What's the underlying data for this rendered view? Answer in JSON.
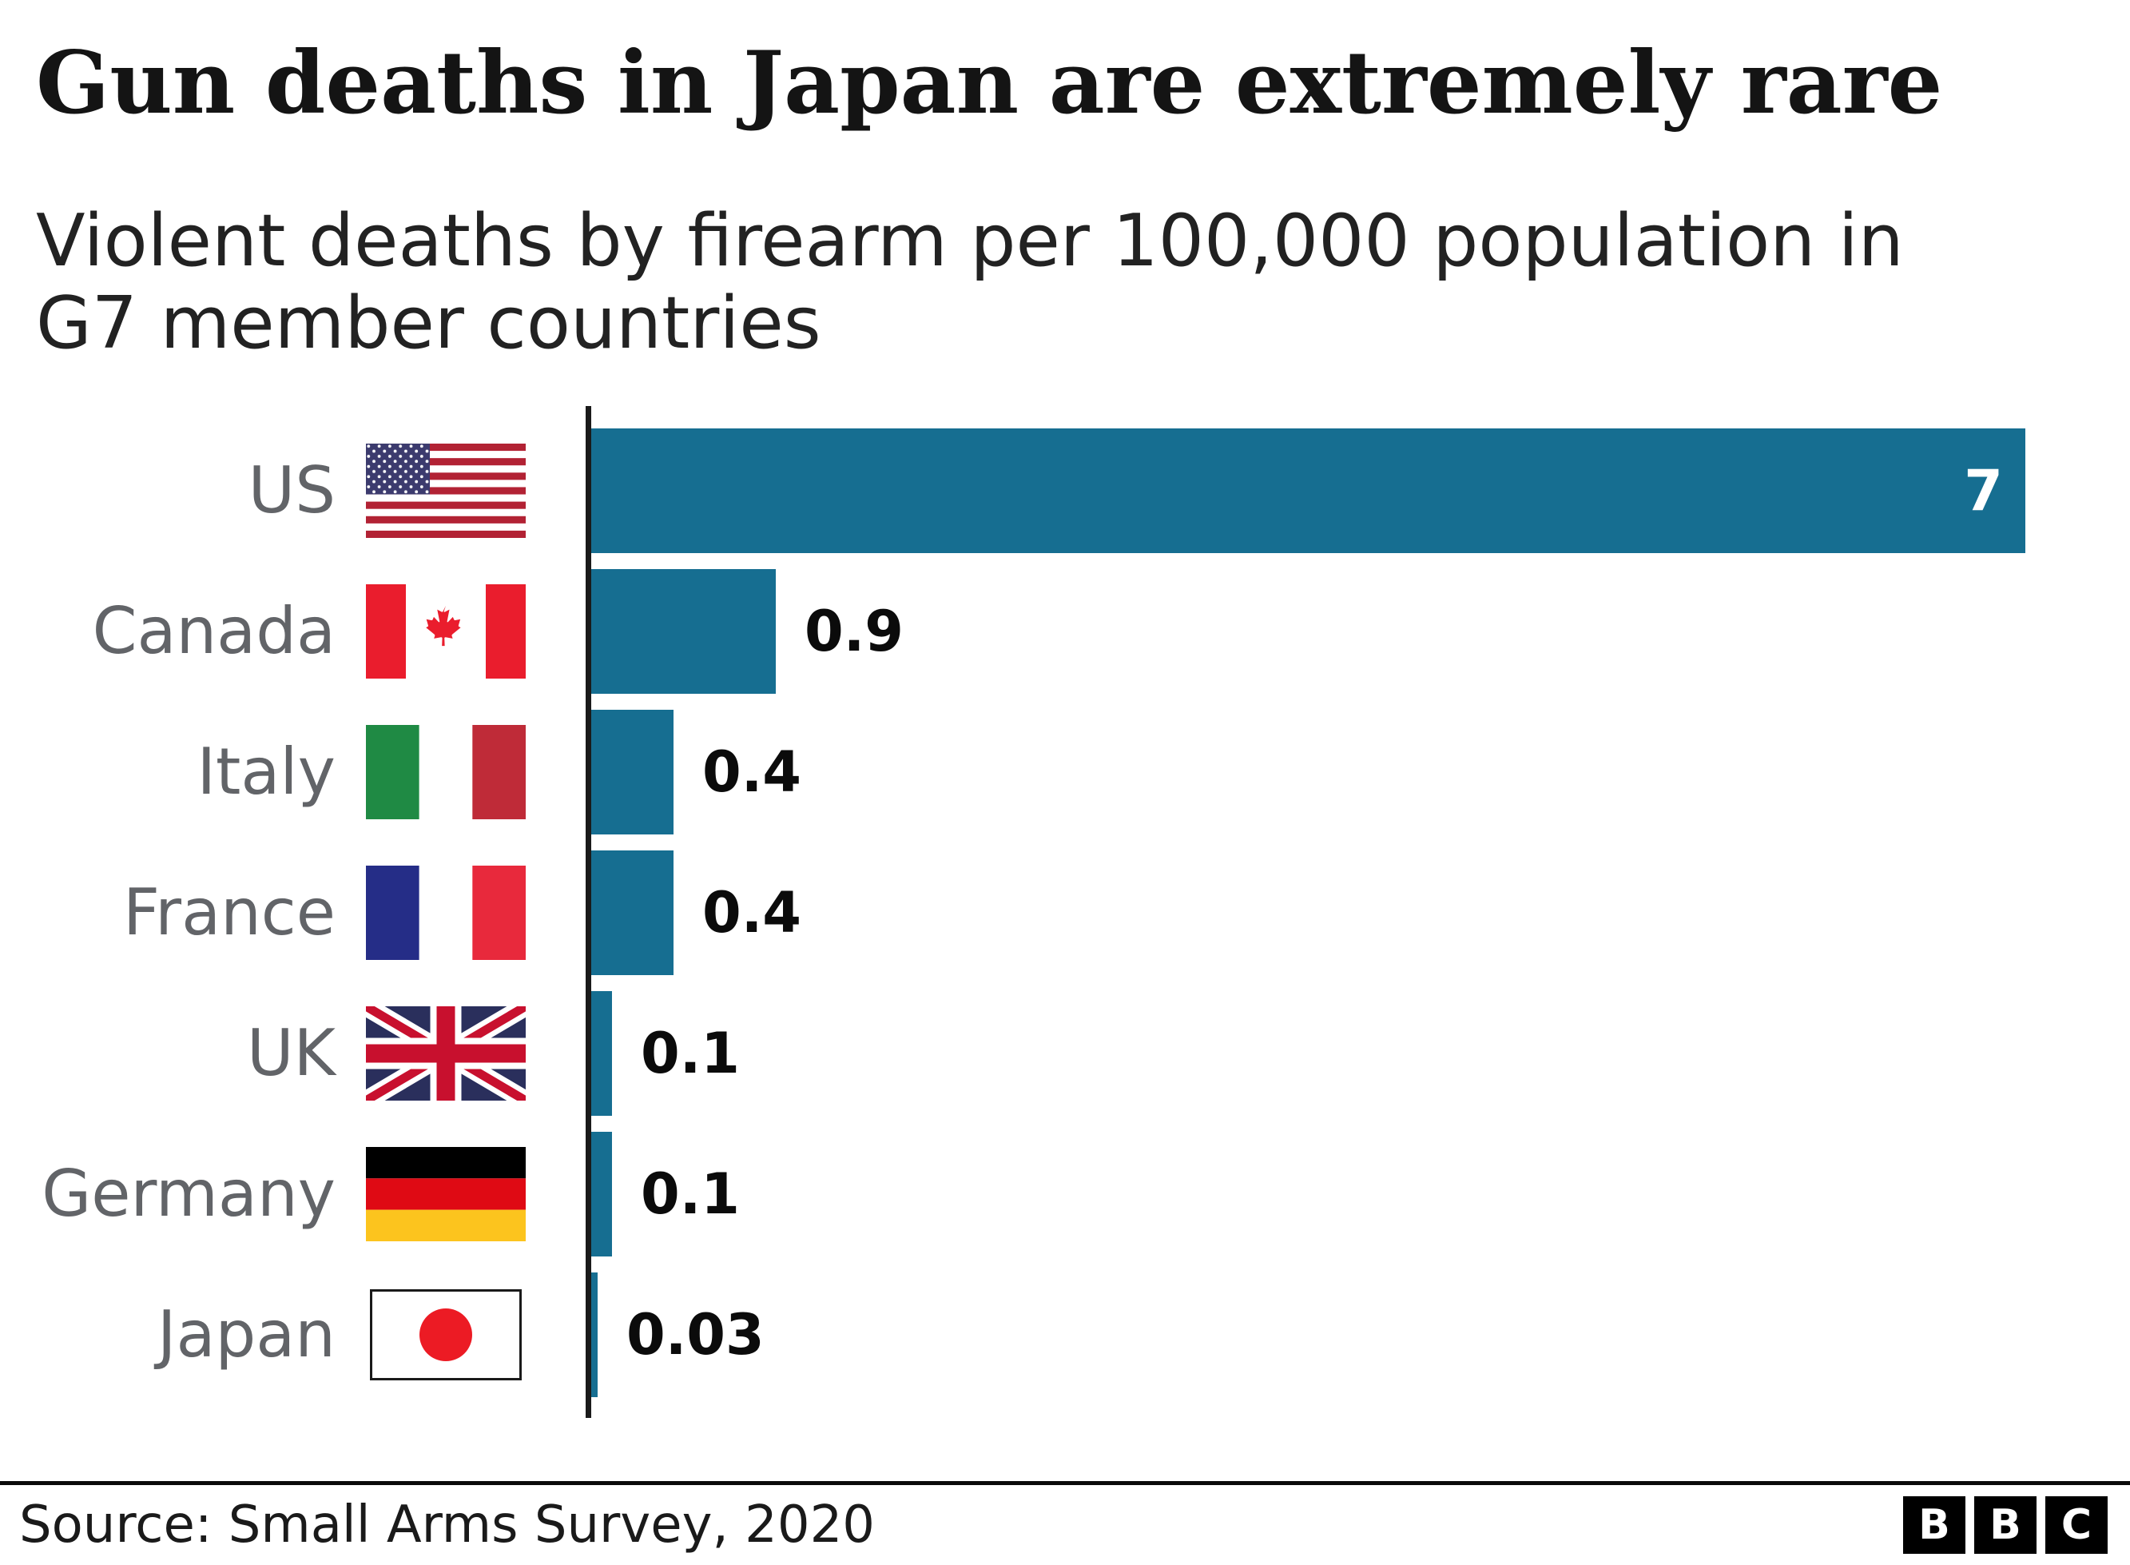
{
  "header": {
    "title": "Gun deaths in Japan are extremely rare",
    "subtitle": "Violent deaths by firearm per 100,000 population in G7 member countries"
  },
  "chart_data": {
    "type": "bar",
    "orientation": "horizontal",
    "categories": [
      "US",
      "Canada",
      "Italy",
      "France",
      "UK",
      "Germany",
      "Japan"
    ],
    "values": [
      7,
      0.9,
      0.4,
      0.4,
      0.1,
      0.1,
      0.03
    ],
    "display_values": [
      "7",
      "0.9",
      "0.4",
      "0.4",
      "0.1",
      "0.1",
      "0.03"
    ],
    "flag_icons": [
      "us-flag-icon",
      "canada-flag-icon",
      "italy-flag-icon",
      "france-flag-icon",
      "uk-flag-icon",
      "germany-flag-icon",
      "japan-flag-icon"
    ],
    "title": "Gun deaths in Japan are extremely rare",
    "subtitle": "Violent deaths by firearm per 100,000 population in G7 member countries",
    "xlim": [
      0,
      7
    ],
    "grid": false,
    "legend": "none",
    "bar_color": "#166E91",
    "axis_color": "#1a1a1a",
    "label_color": "#626468",
    "value_color": "#0b0b0b",
    "value_color_inside_bar": "#ffffff"
  },
  "footer": {
    "source": "Source: Small Arms Survey, 2020",
    "logo_letters": [
      "B",
      "B",
      "C"
    ]
  }
}
